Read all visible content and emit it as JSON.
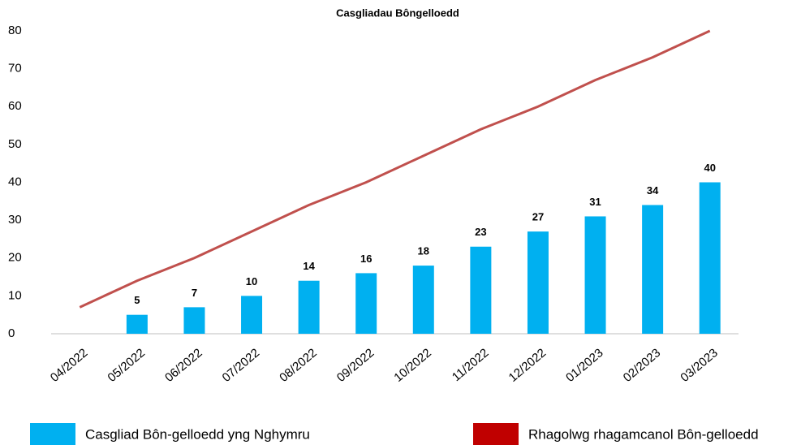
{
  "chart_data": {
    "type": "bar",
    "title": "Casgliadau Bôngelloedd",
    "categories": [
      "04/2022",
      "05/2022",
      "06/2022",
      "07/2022",
      "08/2022",
      "09/2022",
      "10/2022",
      "11/2022",
      "12/2022",
      "01/2023",
      "02/2023",
      "03/2023"
    ],
    "series": [
      {
        "name": "Casgliad Bôn-gelloedd yng Nghymru",
        "type": "bar",
        "color": "#00b0f0",
        "values": [
          null,
          5,
          7,
          10,
          14,
          16,
          18,
          23,
          27,
          31,
          34,
          40
        ]
      },
      {
        "name": "Rhagolwg rhagamcanol Bôn-gelloedd",
        "type": "line",
        "color": "#c0504d",
        "legend_color": "#c00000",
        "values": [
          7,
          14,
          20,
          27,
          34,
          40,
          47,
          54,
          60,
          67,
          73,
          80
        ]
      }
    ],
    "ylim": [
      0,
      80
    ],
    "yticks": [
      0,
      10,
      20,
      30,
      40,
      50,
      60,
      70,
      80
    ],
    "grid": false,
    "legend": "bottom"
  }
}
